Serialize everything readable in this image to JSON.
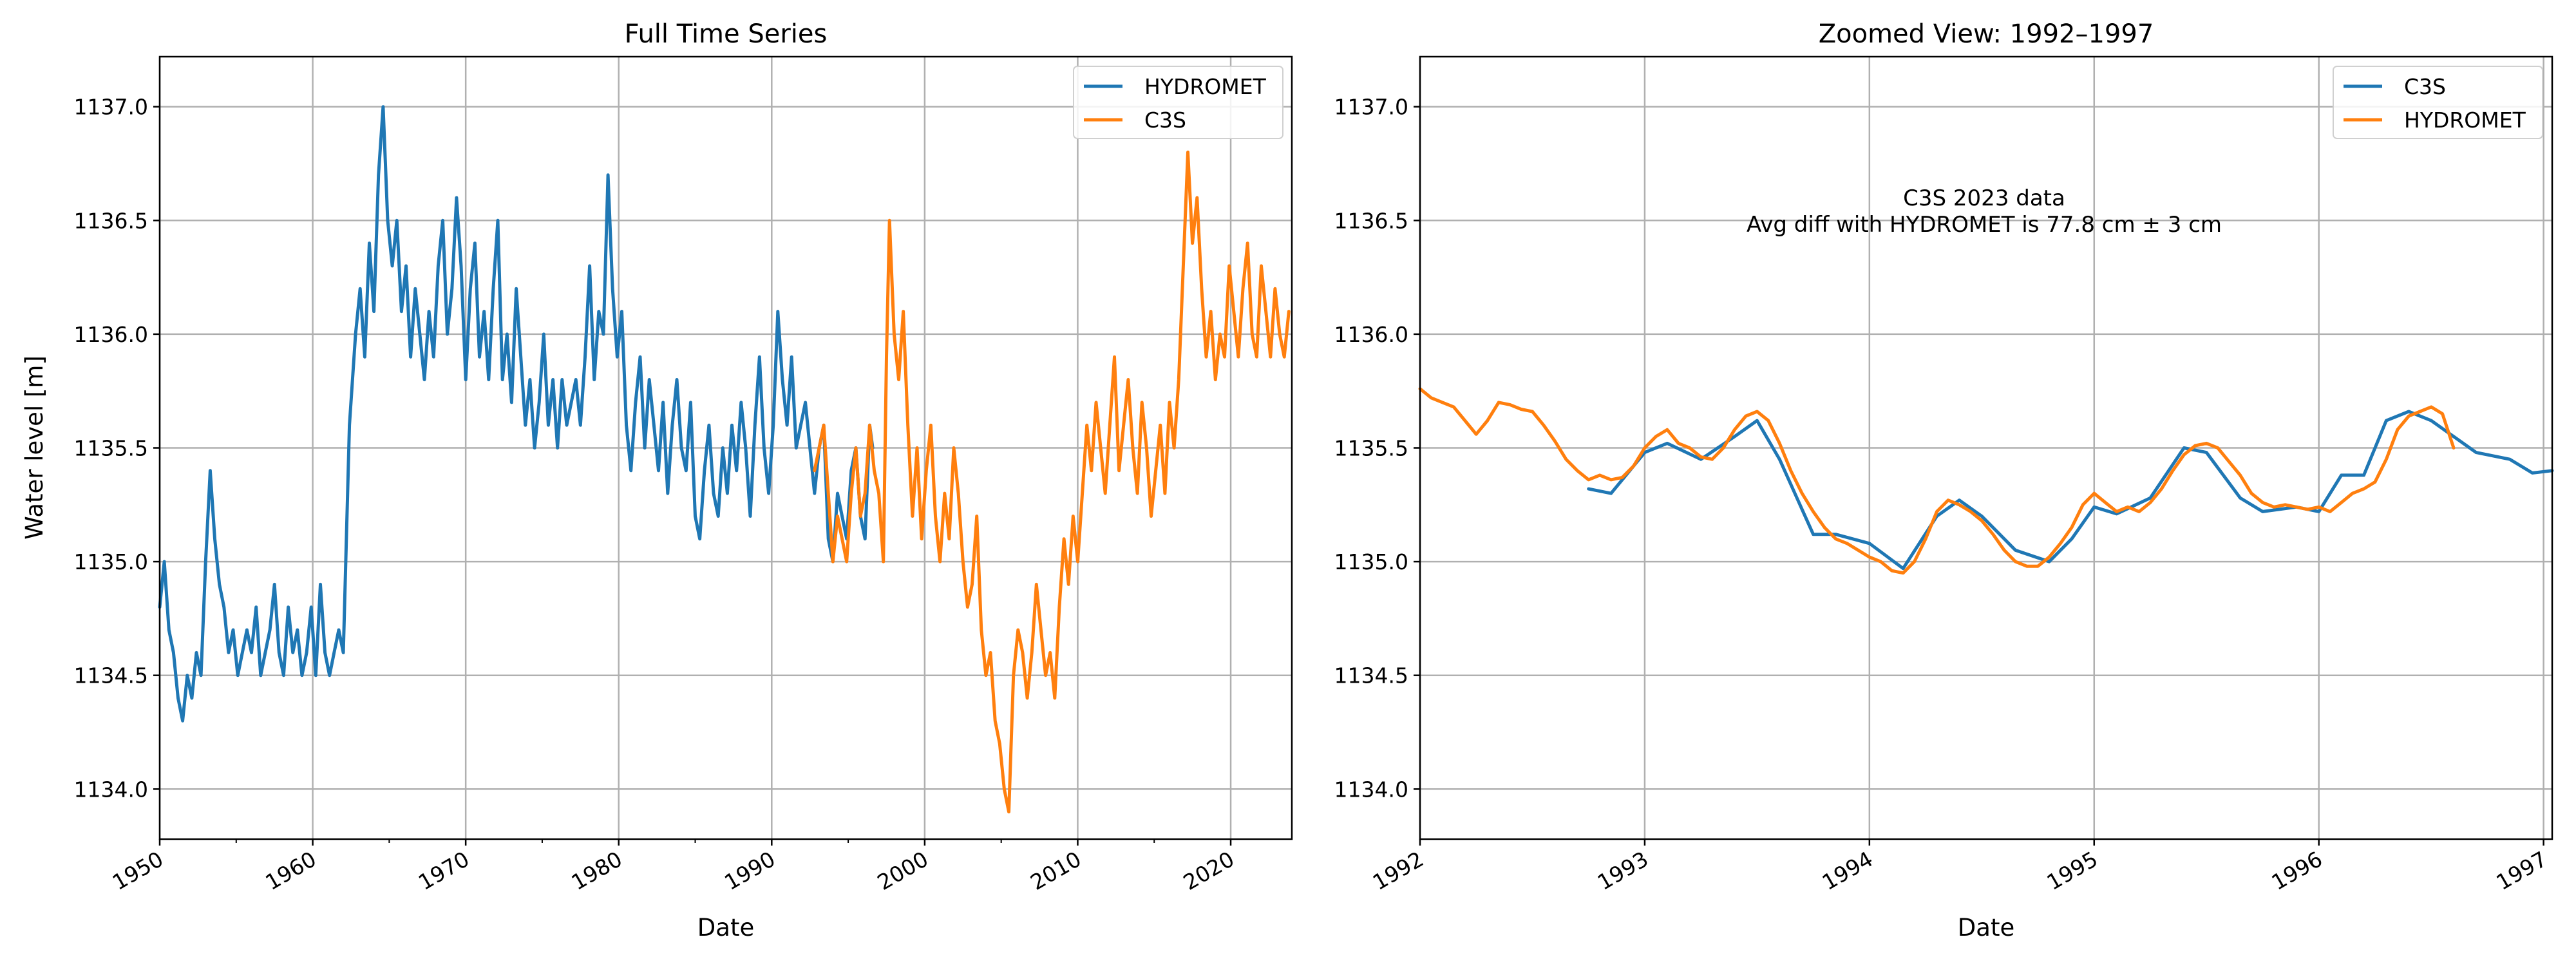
{
  "figure": {
    "colors": {
      "hydromet": "#1f77b4",
      "c3s": "#ff7f0e",
      "grid": "#b0b0b0"
    }
  },
  "chart_data": [
    {
      "type": "line",
      "title": "Full Time Series",
      "xlabel": "Date",
      "ylabel": "Water level [m]",
      "xlim": [
        "1950-01-01",
        "2023-12-31"
      ],
      "ylim": [
        1133.78,
        1137.22
      ],
      "xticks": [
        "1950",
        "1960",
        "1970",
        "1980",
        "1990",
        "2000",
        "2010",
        "2020"
      ],
      "yticks": [
        "1134.0",
        "1134.5",
        "1135.0",
        "1135.5",
        "1136.0",
        "1136.5",
        "1137.0"
      ],
      "grid": true,
      "legend_position": "top-right",
      "series": [
        {
          "name": "HYDROMET",
          "color": "#1f77b4",
          "x": [
            "1950.0",
            "1950.3",
            "1950.6",
            "1950.9",
            "1951.2",
            "1951.5",
            "1951.8",
            "1952.1",
            "1952.4",
            "1952.7",
            "1953.0",
            "1953.3",
            "1953.6",
            "1953.9",
            "1954.2",
            "1954.5",
            "1954.8",
            "1955.1",
            "1955.4",
            "1955.7",
            "1956.0",
            "1956.3",
            "1956.6",
            "1956.9",
            "1957.2",
            "1957.5",
            "1957.8",
            "1958.1",
            "1958.4",
            "1958.7",
            "1959.0",
            "1959.3",
            "1959.6",
            "1959.9",
            "1960.2",
            "1960.5",
            "1960.8",
            "1961.1",
            "1961.4",
            "1961.7",
            "1962.0",
            "1962.4",
            "1962.8",
            "1963.1",
            "1963.4",
            "1963.7",
            "1964.0",
            "1964.3",
            "1964.6",
            "1964.9",
            "1965.2",
            "1965.5",
            "1965.8",
            "1966.1",
            "1966.4",
            "1966.7",
            "1967.0",
            "1967.3",
            "1967.6",
            "1967.9",
            "1968.2",
            "1968.5",
            "1968.8",
            "1969.1",
            "1969.4",
            "1969.7",
            "1970.0",
            "1970.3",
            "1970.6",
            "1970.9",
            "1971.2",
            "1971.5",
            "1971.8",
            "1972.1",
            "1972.4",
            "1972.7",
            "1973.0",
            "1973.3",
            "1973.6",
            "1973.9",
            "1974.2",
            "1974.5",
            "1974.8",
            "1975.1",
            "1975.4",
            "1975.7",
            "1976.0",
            "1976.3",
            "1976.6",
            "1976.9",
            "1977.2",
            "1977.5",
            "1977.8",
            "1978.1",
            "1978.4",
            "1978.7",
            "1979.0",
            "1979.3",
            "1979.6",
            "1979.9",
            "1980.2",
            "1980.5",
            "1980.8",
            "1981.1",
            "1981.4",
            "1981.7",
            "1982.0",
            "1982.3",
            "1982.6",
            "1982.9",
            "1983.2",
            "1983.5",
            "1983.8",
            "1984.1",
            "1984.4",
            "1984.7",
            "1985.0",
            "1985.3",
            "1985.6",
            "1985.9",
            "1986.2",
            "1986.5",
            "1986.8",
            "1987.1",
            "1987.4",
            "1987.7",
            "1988.0",
            "1988.3",
            "1988.6",
            "1988.9",
            "1989.2",
            "1989.5",
            "1989.8",
            "1990.1",
            "1990.4",
            "1990.7",
            "1991.0",
            "1991.3",
            "1991.6",
            "1991.9",
            "1992.2",
            "1992.5",
            "1992.8",
            "1993.1",
            "1993.4",
            "1993.7",
            "1994.0",
            "1994.3",
            "1994.6",
            "1994.9",
            "1995.2",
            "1995.5",
            "1995.8",
            "1996.1",
            "1996.4",
            "1996.6"
          ],
          "y": [
            1134.8,
            1135.0,
            1134.7,
            1134.6,
            1134.4,
            1134.3,
            1134.5,
            1134.4,
            1134.6,
            1134.5,
            1135.0,
            1135.4,
            1135.1,
            1134.9,
            1134.8,
            1134.6,
            1134.7,
            1134.5,
            1134.6,
            1134.7,
            1134.6,
            1134.8,
            1134.5,
            1134.6,
            1134.7,
            1134.9,
            1134.6,
            1134.5,
            1134.8,
            1134.6,
            1134.7,
            1134.5,
            1134.6,
            1134.8,
            1134.5,
            1134.9,
            1134.6,
            1134.5,
            1134.6,
            1134.7,
            1134.6,
            1135.6,
            1136.0,
            1136.2,
            1135.9,
            1136.4,
            1136.1,
            1136.7,
            1137.0,
            1136.5,
            1136.3,
            1136.5,
            1136.1,
            1136.3,
            1135.9,
            1136.2,
            1136.0,
            1135.8,
            1136.1,
            1135.9,
            1136.3,
            1136.5,
            1136.0,
            1136.2,
            1136.6,
            1136.3,
            1135.8,
            1136.2,
            1136.4,
            1135.9,
            1136.1,
            1135.8,
            1136.2,
            1136.5,
            1135.8,
            1136.0,
            1135.7,
            1136.2,
            1135.9,
            1135.6,
            1135.8,
            1135.5,
            1135.7,
            1136.0,
            1135.6,
            1135.8,
            1135.5,
            1135.8,
            1135.6,
            1135.7,
            1135.8,
            1135.6,
            1135.9,
            1136.3,
            1135.8,
            1136.1,
            1136.0,
            1136.7,
            1136.2,
            1135.9,
            1136.1,
            1135.6,
            1135.4,
            1135.7,
            1135.9,
            1135.5,
            1135.8,
            1135.6,
            1135.4,
            1135.7,
            1135.3,
            1135.6,
            1135.8,
            1135.5,
            1135.4,
            1135.7,
            1135.2,
            1135.1,
            1135.4,
            1135.6,
            1135.3,
            1135.2,
            1135.5,
            1135.3,
            1135.6,
            1135.4,
            1135.7,
            1135.5,
            1135.2,
            1135.6,
            1135.9,
            1135.5,
            1135.3,
            1135.6,
            1136.1,
            1135.8,
            1135.6,
            1135.9,
            1135.5,
            1135.6,
            1135.7,
            1135.5,
            1135.3,
            1135.5,
            1135.6,
            1135.1,
            1135.0,
            1135.3,
            1135.2,
            1135.1,
            1135.4,
            1135.5,
            1135.2,
            1135.1,
            1135.6,
            1135.5
          ],
          "x_format": "decimal-year"
        },
        {
          "name": "C3S",
          "color": "#ff7f0e",
          "x": [
            "1992.8",
            "1993.1",
            "1993.4",
            "1993.7",
            "1994.0",
            "1994.3",
            "1994.6",
            "1994.9",
            "1995.2",
            "1995.5",
            "1995.8",
            "1996.1",
            "1996.4",
            "1996.7",
            "1997.0",
            "1997.3",
            "1997.5",
            "1997.7",
            "1998.0",
            "1998.3",
            "1998.6",
            "1998.9",
            "1999.2",
            "1999.5",
            "1999.8",
            "2000.1",
            "2000.4",
            "2000.7",
            "2001.0",
            "2001.3",
            "2001.6",
            "2001.9",
            "2002.2",
            "2002.5",
            "2002.8",
            "2003.1",
            "2003.4",
            "2003.7",
            "2004.0",
            "2004.3",
            "2004.6",
            "2004.9",
            "2005.2",
            "2005.5",
            "2005.8",
            "2006.1",
            "2006.4",
            "2006.7",
            "2007.0",
            "2007.3",
            "2007.6",
            "2007.9",
            "2008.2",
            "2008.5",
            "2008.8",
            "2009.1",
            "2009.4",
            "2009.7",
            "2010.0",
            "2010.3",
            "2010.6",
            "2010.9",
            "2011.2",
            "2011.5",
            "2011.8",
            "2012.1",
            "2012.4",
            "2012.7",
            "2013.0",
            "2013.3",
            "2013.6",
            "2013.9",
            "2014.2",
            "2014.5",
            "2014.8",
            "2015.1",
            "2015.4",
            "2015.7",
            "2016.0",
            "2016.3",
            "2016.6",
            "2016.9",
            "2017.2",
            "2017.5",
            "2017.8",
            "2018.1",
            "2018.4",
            "2018.7",
            "2019.0",
            "2019.3",
            "2019.6",
            "2019.9",
            "2020.2",
            "2020.5",
            "2020.8",
            "2021.1",
            "2021.4",
            "2021.7",
            "2022.0",
            "2022.3",
            "2022.6",
            "2022.9",
            "2023.2",
            "2023.5",
            "2023.8"
          ],
          "y": [
            1135.4,
            1135.5,
            1135.6,
            1135.3,
            1135.0,
            1135.2,
            1135.1,
            1135.0,
            1135.3,
            1135.5,
            1135.2,
            1135.3,
            1135.6,
            1135.4,
            1135.3,
            1135.0,
            1135.9,
            1136.5,
            1136.0,
            1135.8,
            1136.1,
            1135.6,
            1135.2,
            1135.5,
            1135.1,
            1135.4,
            1135.6,
            1135.2,
            1135.0,
            1135.3,
            1135.1,
            1135.5,
            1135.3,
            1135.0,
            1134.8,
            1134.9,
            1135.2,
            1134.7,
            1134.5,
            1134.6,
            1134.3,
            1134.2,
            1134.0,
            1133.9,
            1134.5,
            1134.7,
            1134.6,
            1134.4,
            1134.6,
            1134.9,
            1134.7,
            1134.5,
            1134.6,
            1134.4,
            1134.8,
            1135.1,
            1134.9,
            1135.2,
            1135.0,
            1135.3,
            1135.6,
            1135.4,
            1135.7,
            1135.5,
            1135.3,
            1135.6,
            1135.9,
            1135.4,
            1135.6,
            1135.8,
            1135.5,
            1135.3,
            1135.7,
            1135.5,
            1135.2,
            1135.4,
            1135.6,
            1135.3,
            1135.7,
            1135.5,
            1135.8,
            1136.3,
            1136.8,
            1136.4,
            1136.6,
            1136.2,
            1135.9,
            1136.1,
            1135.8,
            1136.0,
            1135.9,
            1136.3,
            1136.1,
            1135.9,
            1136.2,
            1136.4,
            1136.0,
            1135.9,
            1136.3,
            1136.1,
            1135.9,
            1136.2,
            1136.0,
            1135.9,
            1136.1
          ],
          "x_format": "decimal-year"
        }
      ]
    },
    {
      "type": "line",
      "title": "Zoomed View: 1992–1997",
      "xlabel": "Date",
      "ylabel": "",
      "xlim": [
        "1992-01-01",
        "1997-01-15"
      ],
      "ylim": [
        1133.78,
        1137.22
      ],
      "xticks": [
        "1992",
        "1993",
        "1994",
        "1995",
        "1996",
        "1997"
      ],
      "yticks": [
        "1134.0",
        "1134.5",
        "1135.0",
        "1135.5",
        "1136.0",
        "1136.5",
        "1137.0"
      ],
      "grid": true,
      "legend_position": "top-right",
      "annotation": [
        "C3S 2023 data",
        "Avg diff with HYDROMET is 77.8 cm ± 3 cm"
      ],
      "series": [
        {
          "name": "C3S",
          "color": "#1f77b4",
          "x": [
            "1992.75",
            "1992.85",
            "1993.0",
            "1993.1",
            "1993.25",
            "1993.4",
            "1993.5",
            "1993.6",
            "1993.75",
            "1993.85",
            "1994.0",
            "1994.15",
            "1994.3",
            "1994.4",
            "1994.5",
            "1994.65",
            "1994.8",
            "1994.9",
            "1995.0",
            "1995.1",
            "1995.25",
            "1995.4",
            "1995.5",
            "1995.65",
            "1995.75",
            "1995.9",
            "1996.0",
            "1996.1",
            "1996.2",
            "1996.3",
            "1996.4",
            "1996.5",
            "1996.6",
            "1996.7",
            "1996.85",
            "1996.95",
            "1997.05"
          ],
          "y": [
            1135.32,
            1135.3,
            1135.48,
            1135.52,
            1135.45,
            1135.55,
            1135.62,
            1135.45,
            1135.12,
            1135.12,
            1135.08,
            1134.97,
            1135.2,
            1135.27,
            1135.2,
            1135.05,
            1135.0,
            1135.1,
            1135.24,
            1135.21,
            1135.28,
            1135.5,
            1135.48,
            1135.28,
            1135.22,
            1135.24,
            1135.22,
            1135.38,
            1135.38,
            1135.62,
            1135.66,
            1135.62,
            1135.55,
            1135.48,
            1135.45,
            1135.39,
            1135.4
          ],
          "x_format": "decimal-year"
        },
        {
          "name": "HYDROMET",
          "color": "#ff7f0e",
          "x": [
            "1992.0",
            "1992.05",
            "1992.1",
            "1992.15",
            "1992.2",
            "1992.25",
            "1992.3",
            "1992.35",
            "1992.4",
            "1992.45",
            "1992.5",
            "1992.55",
            "1992.6",
            "1992.65",
            "1992.7",
            "1992.75",
            "1992.8",
            "1992.85",
            "1992.9",
            "1992.95",
            "1993.0",
            "1993.05",
            "1993.1",
            "1993.15",
            "1993.2",
            "1993.25",
            "1993.3",
            "1993.35",
            "1993.4",
            "1993.45",
            "1993.5",
            "1993.55",
            "1993.6",
            "1993.65",
            "1993.7",
            "1993.75",
            "1993.8",
            "1993.85",
            "1993.9",
            "1993.95",
            "1994.0",
            "1994.05",
            "1994.1",
            "1994.15",
            "1994.2",
            "1994.25",
            "1994.3",
            "1994.35",
            "1994.4",
            "1994.45",
            "1994.5",
            "1994.55",
            "1994.6",
            "1994.65",
            "1994.7",
            "1994.75",
            "1994.8",
            "1994.85",
            "1994.9",
            "1994.95",
            "1995.0",
            "1995.05",
            "1995.1",
            "1995.15",
            "1995.2",
            "1995.25",
            "1995.3",
            "1995.35",
            "1995.4",
            "1995.45",
            "1995.5",
            "1995.55",
            "1995.6",
            "1995.65",
            "1995.7",
            "1995.75",
            "1995.8",
            "1995.85",
            "1995.9",
            "1995.95",
            "1996.0",
            "1996.05",
            "1996.1",
            "1996.15",
            "1996.2",
            "1996.25",
            "1996.3",
            "1996.35",
            "1996.4",
            "1996.45",
            "1996.5",
            "1996.55",
            "1996.6"
          ],
          "y": [
            1135.76,
            1135.72,
            1135.7,
            1135.68,
            1135.62,
            1135.56,
            1135.62,
            1135.7,
            1135.69,
            1135.67,
            1135.66,
            1135.6,
            1135.53,
            1135.45,
            1135.4,
            1135.36,
            1135.38,
            1135.36,
            1135.37,
            1135.42,
            1135.5,
            1135.55,
            1135.58,
            1135.52,
            1135.5,
            1135.46,
            1135.45,
            1135.5,
            1135.58,
            1135.64,
            1135.66,
            1135.62,
            1135.52,
            1135.4,
            1135.3,
            1135.22,
            1135.15,
            1135.1,
            1135.08,
            1135.05,
            1135.02,
            1135.0,
            1134.96,
            1134.95,
            1135.0,
            1135.1,
            1135.22,
            1135.27,
            1135.25,
            1135.22,
            1135.18,
            1135.12,
            1135.05,
            1135.0,
            1134.98,
            1134.98,
            1135.02,
            1135.08,
            1135.15,
            1135.25,
            1135.3,
            1135.26,
            1135.22,
            1135.24,
            1135.22,
            1135.26,
            1135.32,
            1135.4,
            1135.47,
            1135.51,
            1135.52,
            1135.5,
            1135.44,
            1135.38,
            1135.3,
            1135.26,
            1135.24,
            1135.25,
            1135.24,
            1135.23,
            1135.24,
            1135.22,
            1135.26,
            1135.3,
            1135.32,
            1135.35,
            1135.45,
            1135.58,
            1135.64,
            1135.66,
            1135.68,
            1135.65,
            1135.5
          ],
          "x_format": "decimal-year"
        }
      ]
    }
  ]
}
